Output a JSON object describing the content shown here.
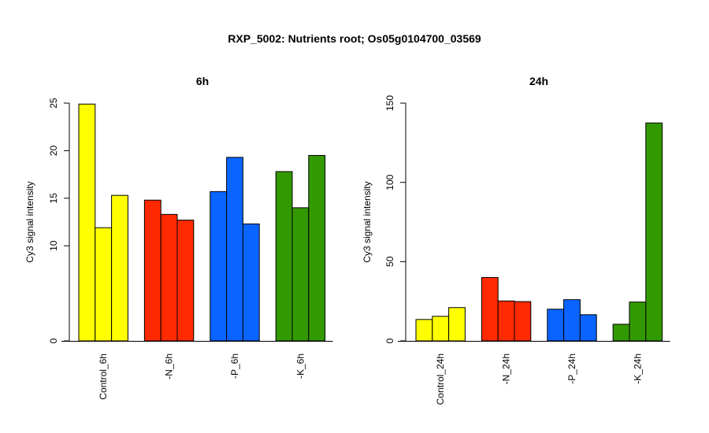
{
  "title": "RXP_5002: Nutrients root; Os05g0104700_03569",
  "chart_data": [
    {
      "type": "bar",
      "title": "6h",
      "ylabel": "Cy3 signal intensity",
      "ylim": [
        0,
        25
      ],
      "yticks": [
        0,
        10,
        15,
        20,
        25
      ],
      "groups": [
        {
          "label": "Control_6h",
          "color": "#ffff00",
          "values": [
            24.9,
            11.9,
            15.3
          ]
        },
        {
          "label": "-N_6h",
          "color": "#ff2a00",
          "values": [
            14.8,
            13.3,
            12.7
          ]
        },
        {
          "label": "-P_6h",
          "color": "#0a64ff",
          "values": [
            15.7,
            19.3,
            12.3
          ]
        },
        {
          "label": "-K_6h",
          "color": "#339900",
          "values": [
            17.8,
            14.0,
            19.5
          ]
        }
      ]
    },
    {
      "type": "bar",
      "title": "24h",
      "ylabel": "Cy3 signal intensity",
      "ylim": [
        0,
        150
      ],
      "yticks": [
        0,
        50,
        100,
        150
      ],
      "groups": [
        {
          "label": "Control_24h",
          "color": "#ffff00",
          "values": [
            13.5,
            15.5,
            21.0
          ]
        },
        {
          "label": "-N_24h",
          "color": "#ff2a00",
          "values": [
            40.0,
            25.2,
            24.8
          ]
        },
        {
          "label": "-P_24h",
          "color": "#0a64ff",
          "values": [
            20.0,
            26.0,
            16.5
          ]
        },
        {
          "label": "-K_24h",
          "color": "#339900",
          "values": [
            10.5,
            24.5,
            137.5
          ]
        }
      ]
    }
  ]
}
